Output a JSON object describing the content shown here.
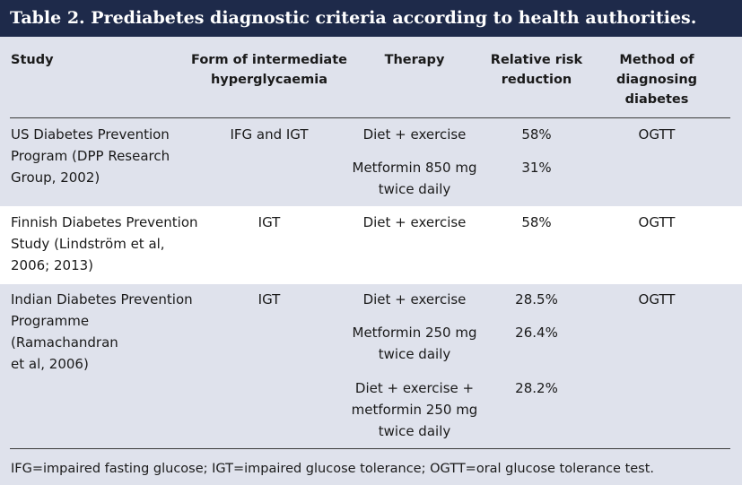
{
  "title": "Table 2. Prediabetes diagnostic criteria according to health authorities.",
  "headers": {
    "study": "Study",
    "form_line1": "Form of intermediate",
    "form_line2": "hyperglycaemia",
    "therapy": "Therapy",
    "rrr_line1": "Relative risk",
    "rrr_line2": "reduction",
    "method_line1": "Method of",
    "method_line2": "diagnosing",
    "method_line3": "diabetes"
  },
  "rows": [
    {
      "study_lines": [
        "US Diabetes Prevention",
        "Program (DPP Research",
        "Group, 2002)"
      ],
      "form": "IFG and IGT",
      "therapies": [
        {
          "lines": [
            "Diet + exercise"
          ],
          "rrr": "58%"
        },
        {
          "lines": [
            "Metformin 850 mg",
            "twice daily"
          ],
          "rrr": "31%"
        }
      ],
      "method": "OGTT"
    },
    {
      "study_lines": [
        "Finnish Diabetes Prevention",
        "Study (Lindström et al,",
        "2006; 2013)"
      ],
      "form": "IGT",
      "therapies": [
        {
          "lines": [
            "Diet + exercise"
          ],
          "rrr": "58%"
        }
      ],
      "method": "OGTT"
    },
    {
      "study_lines": [
        "Indian Diabetes Prevention",
        "Programme (Ramachandran",
        "et al, 2006)"
      ],
      "form": "IGT",
      "therapies": [
        {
          "lines": [
            "Diet + exercise"
          ],
          "rrr": "28.5%"
        },
        {
          "lines": [
            "Metformin 250 mg",
            "twice daily"
          ],
          "rrr": "26.4%"
        },
        {
          "lines": [
            "Diet + exercise +",
            "metformin 250 mg",
            "twice daily"
          ],
          "rrr": "28.2%"
        }
      ],
      "method": "OGTT"
    }
  ],
  "footnote": "IFG=impaired fasting glucose; IGT=impaired glucose tolerance; OGTT=oral glucose tolerance test."
}
